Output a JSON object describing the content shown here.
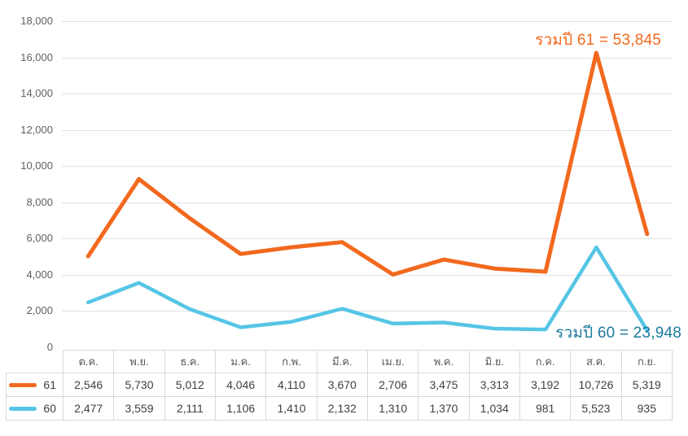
{
  "chart": {
    "y_axis": {
      "max": 18000,
      "step": 2000,
      "tick_labels": [
        "18,000",
        "16,000",
        "14,000",
        "12,000",
        "10,000",
        "8,000",
        "6,000",
        "4,000",
        "2,000",
        "0"
      ]
    },
    "annotations": {
      "total_61": {
        "text": "รวมปี 61 = 53,845",
        "color": "#F2691E"
      },
      "total_60": {
        "text": "รวมปี 60 = 23,948",
        "color": "#1B7A9C"
      }
    },
    "colors": {
      "series_61": "#F2691E",
      "series_60": "#55C5E6",
      "gridline": "#E2E2E2",
      "axis_label": "#616161",
      "table_border": "#D8D8D8"
    }
  },
  "chart_data": {
    "type": "line",
    "stacked": true,
    "title": "",
    "xlabel": "",
    "ylabel": "",
    "ylim": [
      0,
      18000
    ],
    "grid": true,
    "legend_position": "table-left",
    "categories": [
      "ต.ค.",
      "พ.ย.",
      "ธ.ค.",
      "ม.ค.",
      "ก.พ.",
      "มี.ค.",
      "เม.ย.",
      "พ.ค.",
      "มิ.ย.",
      "ก.ค.",
      "ส.ค.",
      "ก.ย."
    ],
    "series": [
      {
        "name": "61",
        "color": "#F2691E",
        "line_width": 5,
        "values": [
          2546,
          5730,
          5012,
          4046,
          4110,
          3670,
          2706,
          3475,
          3313,
          3192,
          10726,
          5319
        ],
        "total": 53845,
        "total_label": "รวมปี 61 = 53,845"
      },
      {
        "name": "60",
        "color": "#55C5E6",
        "line_width": 4.5,
        "values": [
          2477,
          3559,
          2111,
          1106,
          1410,
          2132,
          1310,
          1370,
          1034,
          981,
          5523,
          935
        ],
        "total": 23948,
        "total_label": "รวมปี 60 = 23,948"
      }
    ],
    "annotations": [
      "รวมปี 61 = 53,845",
      "รวมปี 60 = 23,948"
    ]
  },
  "table": {
    "columns": [
      "ต.ค.",
      "พ.ย.",
      "ธ.ค.",
      "ม.ค.",
      "ก.พ.",
      "มี.ค.",
      "เม.ย.",
      "พ.ค.",
      "มิ.ย.",
      "ก.ค.",
      "ส.ค.",
      "ก.ย."
    ],
    "rows": [
      {
        "label": "61",
        "values": [
          "2,546",
          "5,730",
          "5,012",
          "4,046",
          "4,110",
          "3,670",
          "2,706",
          "3,475",
          "3,313",
          "3,192",
          "10,726",
          "5,319"
        ]
      },
      {
        "label": "60",
        "values": [
          "2,477",
          "3,559",
          "2,111",
          "1,106",
          "1,410",
          "2,132",
          "1,310",
          "1,370",
          "1,034",
          "981",
          "5,523",
          "935"
        ]
      }
    ]
  }
}
